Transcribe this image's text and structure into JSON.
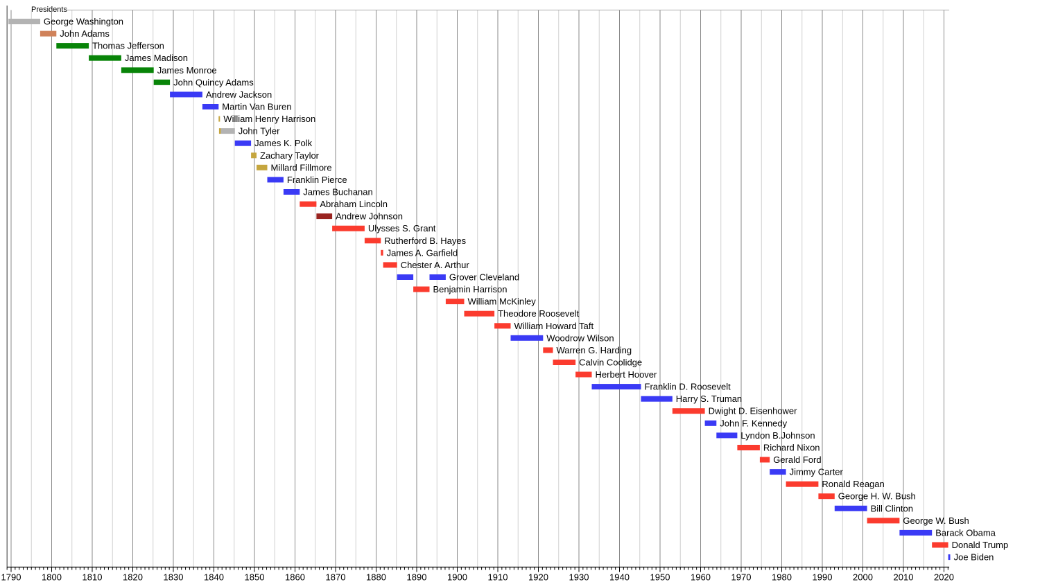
{
  "chart_data": {
    "type": "bar",
    "subtype": "gantt-timeline",
    "title": "Presidents",
    "xlabel": "",
    "ylabel": "",
    "grid": "vertical, every 5 years (darker at decades)",
    "legend": "none (party encoded by bar color)",
    "x_axis": {
      "min": 1789.0,
      "max": 2021.3,
      "tick_labels": [
        "1790",
        "1800",
        "1810",
        "1820",
        "1830",
        "1840",
        "1850",
        "1860",
        "1870",
        "1880",
        "1890",
        "1900",
        "1910",
        "1920",
        "1930",
        "1940",
        "1950",
        "1960",
        "1970",
        "1980",
        "1990",
        "2000",
        "2010",
        "2020"
      ],
      "major_tick_interval": 10,
      "gridline_interval": 5,
      "minor_tick_interval": 1,
      "minor_tick_start": 1789,
      "minor_tick_end": 2021
    },
    "party_colors": {
      "unaffiliated_gray": "#b3b3b3",
      "federalist_salmon": "#d0825a",
      "democratic_republican_green": "#088408",
      "democratic_blue": "#3a3af5",
      "whig_gold": "#c5a63f",
      "republican_red": "#fb3b2e",
      "national_union_dark_red": "#992420"
    },
    "presidents": [
      {
        "name": "George Washington",
        "segments": [
          {
            "start": 1789.33,
            "end": 1797.17,
            "color": "unaffiliated_gray"
          }
        ]
      },
      {
        "name": "John Adams",
        "segments": [
          {
            "start": 1797.17,
            "end": 1801.17,
            "color": "federalist_salmon"
          }
        ]
      },
      {
        "name": "Thomas Jefferson",
        "segments": [
          {
            "start": 1801.17,
            "end": 1809.17,
            "color": "democratic_republican_green"
          }
        ]
      },
      {
        "name": "James Madison",
        "segments": [
          {
            "start": 1809.17,
            "end": 1817.17,
            "color": "democratic_republican_green"
          }
        ]
      },
      {
        "name": "James Monroe",
        "segments": [
          {
            "start": 1817.17,
            "end": 1825.17,
            "color": "democratic_republican_green"
          }
        ]
      },
      {
        "name": "John Quincy Adams",
        "segments": [
          {
            "start": 1825.17,
            "end": 1829.17,
            "color": "democratic_republican_green"
          }
        ]
      },
      {
        "name": "Andrew Jackson",
        "segments": [
          {
            "start": 1829.17,
            "end": 1837.17,
            "color": "democratic_blue"
          }
        ]
      },
      {
        "name": "Martin Van Buren",
        "segments": [
          {
            "start": 1837.17,
            "end": 1841.17,
            "color": "democratic_blue"
          }
        ]
      },
      {
        "name": "William Henry Harrison",
        "segments": [
          {
            "start": 1841.17,
            "end": 1841.26,
            "color": "whig_gold"
          }
        ]
      },
      {
        "name": "John Tyler",
        "segments": [
          {
            "start": 1841.26,
            "end": 1841.72,
            "color": "whig_gold"
          },
          {
            "start": 1841.72,
            "end": 1845.17,
            "color": "unaffiliated_gray"
          }
        ]
      },
      {
        "name": "James K. Polk",
        "segments": [
          {
            "start": 1845.17,
            "end": 1849.17,
            "color": "democratic_blue"
          }
        ]
      },
      {
        "name": "Zachary Taylor",
        "segments": [
          {
            "start": 1849.17,
            "end": 1850.52,
            "color": "whig_gold"
          }
        ]
      },
      {
        "name": "Millard Fillmore",
        "segments": [
          {
            "start": 1850.52,
            "end": 1853.17,
            "color": "whig_gold"
          }
        ]
      },
      {
        "name": "Franklin Pierce",
        "segments": [
          {
            "start": 1853.17,
            "end": 1857.17,
            "color": "democratic_blue"
          }
        ]
      },
      {
        "name": "James Buchanan",
        "segments": [
          {
            "start": 1857.17,
            "end": 1861.17,
            "color": "democratic_blue"
          }
        ]
      },
      {
        "name": "Abraham Lincoln",
        "segments": [
          {
            "start": 1861.17,
            "end": 1865.29,
            "color": "republican_red"
          }
        ]
      },
      {
        "name": "Andrew Johnson",
        "segments": [
          {
            "start": 1865.29,
            "end": 1869.17,
            "color": "national_union_dark_red"
          }
        ]
      },
      {
        "name": "Ulysses S. Grant",
        "segments": [
          {
            "start": 1869.17,
            "end": 1877.17,
            "color": "republican_red"
          }
        ]
      },
      {
        "name": "Rutherford B. Hayes",
        "segments": [
          {
            "start": 1877.17,
            "end": 1881.17,
            "color": "republican_red"
          }
        ]
      },
      {
        "name": "James A. Garfield",
        "segments": [
          {
            "start": 1881.17,
            "end": 1881.73,
            "color": "republican_red"
          }
        ]
      },
      {
        "name": "Chester A. Arthur",
        "segments": [
          {
            "start": 1881.73,
            "end": 1885.17,
            "color": "republican_red"
          }
        ]
      },
      {
        "name": "Grover Cleveland",
        "segments": [
          {
            "start": 1885.17,
            "end": 1889.17,
            "color": "democratic_blue"
          },
          {
            "start": 1893.17,
            "end": 1897.17,
            "color": "democratic_blue"
          }
        ]
      },
      {
        "name": "Benjamin Harrison",
        "segments": [
          {
            "start": 1889.17,
            "end": 1893.17,
            "color": "republican_red"
          }
        ]
      },
      {
        "name": "William McKinley",
        "segments": [
          {
            "start": 1897.17,
            "end": 1901.71,
            "color": "republican_red"
          }
        ]
      },
      {
        "name": "Theodore Roosevelt",
        "segments": [
          {
            "start": 1901.71,
            "end": 1909.17,
            "color": "republican_red"
          }
        ]
      },
      {
        "name": "William Howard Taft",
        "segments": [
          {
            "start": 1909.17,
            "end": 1913.17,
            "color": "republican_red"
          }
        ]
      },
      {
        "name": "Woodrow Wilson",
        "segments": [
          {
            "start": 1913.17,
            "end": 1921.17,
            "color": "democratic_blue"
          }
        ]
      },
      {
        "name": "Warren G. Harding",
        "segments": [
          {
            "start": 1921.17,
            "end": 1923.59,
            "color": "republican_red"
          }
        ]
      },
      {
        "name": "Calvin Coolidge",
        "segments": [
          {
            "start": 1923.59,
            "end": 1929.17,
            "color": "republican_red"
          }
        ]
      },
      {
        "name": "Herbert Hoover",
        "segments": [
          {
            "start": 1929.17,
            "end": 1933.17,
            "color": "republican_red"
          }
        ]
      },
      {
        "name": "Franklin D. Roosevelt",
        "segments": [
          {
            "start": 1933.17,
            "end": 1945.3,
            "color": "democratic_blue"
          }
        ]
      },
      {
        "name": "Harry S. Truman",
        "segments": [
          {
            "start": 1945.3,
            "end": 1953.05,
            "color": "democratic_blue"
          }
        ]
      },
      {
        "name": "Dwight D. Eisenhower",
        "segments": [
          {
            "start": 1953.05,
            "end": 1961.05,
            "color": "republican_red"
          }
        ]
      },
      {
        "name": "John F. Kennedy",
        "segments": [
          {
            "start": 1961.05,
            "end": 1963.9,
            "color": "democratic_blue"
          }
        ]
      },
      {
        "name": "Lyndon B.Johnson",
        "segments": [
          {
            "start": 1963.9,
            "end": 1969.05,
            "color": "democratic_blue"
          }
        ]
      },
      {
        "name": "Richard Nixon",
        "segments": [
          {
            "start": 1969.05,
            "end": 1974.6,
            "color": "republican_red"
          }
        ]
      },
      {
        "name": "Gerald Ford",
        "segments": [
          {
            "start": 1974.6,
            "end": 1977.05,
            "color": "republican_red"
          }
        ]
      },
      {
        "name": "Jimmy Carter",
        "segments": [
          {
            "start": 1977.05,
            "end": 1981.05,
            "color": "democratic_blue"
          }
        ]
      },
      {
        "name": "Ronald Reagan",
        "segments": [
          {
            "start": 1981.05,
            "end": 1989.05,
            "color": "republican_red"
          }
        ]
      },
      {
        "name": "George H. W. Bush",
        "segments": [
          {
            "start": 1989.05,
            "end": 1993.05,
            "color": "republican_red"
          }
        ]
      },
      {
        "name": "Bill Clinton",
        "segments": [
          {
            "start": 1993.05,
            "end": 2001.05,
            "color": "democratic_blue"
          }
        ]
      },
      {
        "name": "George W. Bush",
        "segments": [
          {
            "start": 2001.05,
            "end": 2009.05,
            "color": "republican_red"
          }
        ]
      },
      {
        "name": "Barack Obama",
        "segments": [
          {
            "start": 2009.05,
            "end": 2017.05,
            "color": "democratic_blue"
          }
        ]
      },
      {
        "name": "Donald Trump",
        "segments": [
          {
            "start": 2017.05,
            "end": 2021.05,
            "color": "republican_red"
          }
        ]
      },
      {
        "name": "Joe Biden",
        "segments": [
          {
            "start": 2021.05,
            "end": 2021.55,
            "color": "democratic_blue"
          }
        ]
      }
    ],
    "style_colors": {
      "axis": "#000000",
      "grid_decade": "#8a8a8a",
      "grid_5year": "#d0d0d0",
      "header_line": "#a8a8a8",
      "label_text": "#000000"
    }
  }
}
